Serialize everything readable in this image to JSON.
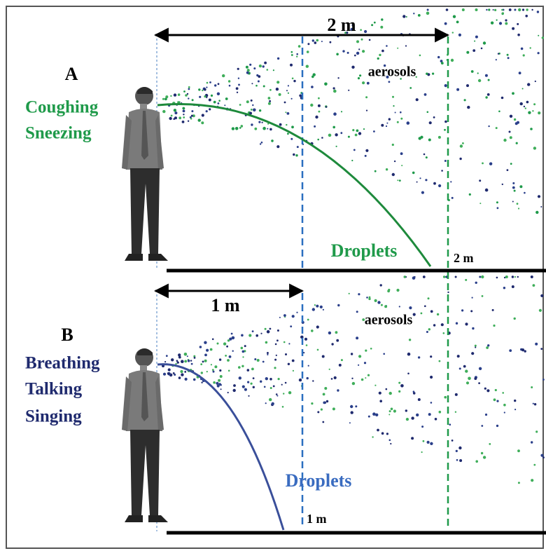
{
  "panels": [
    {
      "label": "A",
      "activities": [
        "Coughing",
        "Sneezing"
      ],
      "distance": "2 m",
      "aerosols": "aerosols",
      "droplets": "Droplets",
      "ground_marker": "2 m"
    },
    {
      "label": "B",
      "activities": [
        "Breathing",
        "Talking",
        "Singing"
      ],
      "distance": "1 m",
      "aerosols": "aerosols",
      "droplets": "Droplets",
      "ground_marker": "1 m"
    }
  ]
}
